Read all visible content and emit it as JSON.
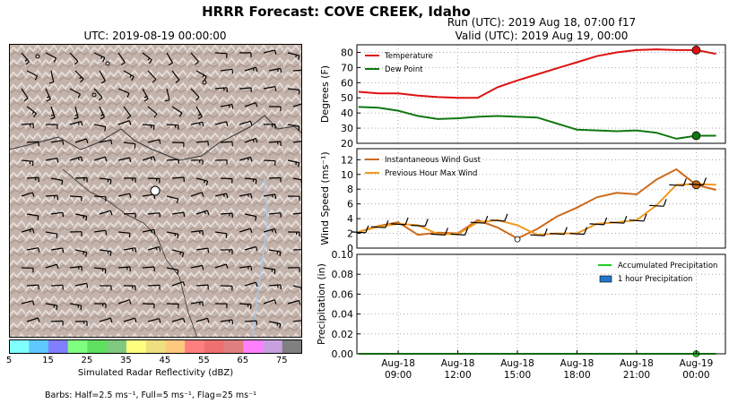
{
  "suptitle": "HRRR Forecast: COVE CREEK, Idaho",
  "map": {
    "title": "UTC: 2019-08-19 00:00:00",
    "colorbar": {
      "label": "Simulated Radar Reflectivity (dBZ)",
      "ticks": [
        "5",
        "15",
        "25",
        "35",
        "45",
        "55",
        "65",
        "75"
      ],
      "colors": [
        "#80ffff",
        "#5fc8ff",
        "#7f7fff",
        "#7fff7f",
        "#5fdf5f",
        "#7fc87f",
        "#ffff7f",
        "#efe07f",
        "#ffc87f",
        "#ff7f7f",
        "#ef7070",
        "#df7f7f",
        "#ff7fff",
        "#c8a0e0",
        "#808080"
      ]
    },
    "barb_note": "Barbs: Half=2.5 ms⁻¹, Full=5 ms⁻¹, Flag=25 ms⁻¹"
  },
  "run": {
    "line1": "Run (UTC): 2019 Aug 18, 07:00 f17",
    "line2": "Valid (UTC): 2019 Aug 19, 00:00"
  },
  "chart_data": [
    {
      "type": "line",
      "ylabel": "Degrees (F)",
      "ylim": [
        20,
        85
      ],
      "yticks": [
        "20",
        "30",
        "40",
        "50",
        "60",
        "70",
        "80"
      ],
      "grid": true,
      "legend": "top-left",
      "x_hours": [
        "Aug 18 07:00",
        "Aug 18 08:00",
        "Aug 18 09:00",
        "Aug 18 10:00",
        "Aug 18 11:00",
        "Aug 18 12:00",
        "Aug 18 13:00",
        "Aug 18 14:00",
        "Aug 18 15:00",
        "Aug 18 16:00",
        "Aug 18 17:00",
        "Aug 18 18:00",
        "Aug 18 19:00",
        "Aug 18 20:00",
        "Aug 18 21:00",
        "Aug 18 22:00",
        "Aug 18 23:00",
        "Aug 19 00:00",
        "Aug 19 01:00"
      ],
      "series": [
        {
          "name": "Temperature",
          "color": "#dd1111",
          "values": [
            54,
            53,
            53,
            51.5,
            50.5,
            50,
            50,
            57,
            61.5,
            65.5,
            69.5,
            73.5,
            77.5,
            80,
            81.5,
            82,
            81.5,
            81.5,
            79
          ]
        },
        {
          "name": "Dew Point",
          "color": "#117711",
          "values": [
            44,
            43.5,
            41.5,
            38,
            36,
            36.5,
            37.5,
            38,
            37.5,
            37,
            33,
            29,
            28.5,
            28,
            28.5,
            27,
            23,
            25,
            25
          ]
        }
      ],
      "markers": [
        {
          "series": "Temperature",
          "x": "Aug 19 00:00",
          "value": 81.5
        },
        {
          "series": "Dew Point",
          "x": "Aug 19 00:00",
          "value": 25
        }
      ]
    },
    {
      "type": "line",
      "ylabel": "Wind Speed (ms⁻¹)",
      "ylim": [
        0,
        13.5
      ],
      "yticks": [
        "0",
        "2",
        "4",
        "6",
        "8",
        "10",
        "12"
      ],
      "grid": true,
      "legend": "top-left",
      "x_hours": [
        "Aug 18 07:00",
        "Aug 18 08:00",
        "Aug 18 09:00",
        "Aug 18 10:00",
        "Aug 18 11:00",
        "Aug 18 12:00",
        "Aug 18 13:00",
        "Aug 18 14:00",
        "Aug 18 15:00",
        "Aug 18 16:00",
        "Aug 18 17:00",
        "Aug 18 18:00",
        "Aug 18 19:00",
        "Aug 18 20:00",
        "Aug 18 21:00",
        "Aug 18 22:00",
        "Aug 18 23:00",
        "Aug 19 00:00",
        "Aug 19 01:00"
      ],
      "series": [
        {
          "name": "Instantaneous Wind Gust",
          "color": "#cc6a1a",
          "values": [
            2.2,
            3.0,
            3.5,
            1.8,
            2.1,
            2.0,
            3.8,
            2.8,
            1.3,
            2.6,
            4.3,
            5.5,
            6.9,
            7.5,
            7.3,
            9.3,
            10.7,
            8.6,
            7.9
          ]
        },
        {
          "name": "Previous Hour Max Wind",
          "color": "#f09a20",
          "values": [
            2.2,
            2.9,
            3.3,
            3.1,
            1.9,
            1.9,
            3.5,
            3.8,
            3.1,
            1.8,
            2.0,
            2.0,
            3.3,
            3.5,
            3.8,
            5.8,
            8.6,
            8.7,
            8.6
          ]
        }
      ],
      "markers": [
        {
          "series": "Instantaneous Wind Gust",
          "x": "Aug 19 00:00",
          "value": 8.6
        },
        {
          "series": "Wind speed (open circle)",
          "x": "Aug 18 15:00",
          "value": 1.2
        }
      ]
    },
    {
      "type": "line",
      "ylabel": "Precipitation (in)",
      "ylim": [
        0,
        0.1
      ],
      "yticks": [
        "0.00",
        "0.02",
        "0.04",
        "0.06",
        "0.08",
        "0.10"
      ],
      "grid": true,
      "legend": "top-right",
      "x_hours": [
        "Aug 18 07:00",
        "Aug 18 08:00",
        "Aug 18 09:00",
        "Aug 18 10:00",
        "Aug 18 11:00",
        "Aug 18 12:00",
        "Aug 18 13:00",
        "Aug 18 14:00",
        "Aug 18 15:00",
        "Aug 18 16:00",
        "Aug 18 17:00",
        "Aug 18 18:00",
        "Aug 18 19:00",
        "Aug 18 20:00",
        "Aug 18 21:00",
        "Aug 18 22:00",
        "Aug 18 23:00",
        "Aug 19 00:00",
        "Aug 19 01:00"
      ],
      "series": [
        {
          "name": "Accumulated Precipitation",
          "color": "#22cc22",
          "values": [
            0,
            0,
            0,
            0,
            0,
            0,
            0,
            0,
            0,
            0,
            0,
            0,
            0,
            0,
            0,
            0,
            0,
            0,
            0
          ]
        },
        {
          "name": "1 hour Precipitation",
          "color": "#2277cc",
          "values": [
            0,
            0,
            0,
            0,
            0,
            0,
            0,
            0,
            0,
            0,
            0,
            0,
            0,
            0,
            0,
            0,
            0,
            0,
            0
          ]
        }
      ],
      "xticks": [
        {
          "x": "Aug 18 09:00",
          "top": "Aug-18",
          "bottom": "09:00"
        },
        {
          "x": "Aug 18 12:00",
          "top": "Aug-18",
          "bottom": "12:00"
        },
        {
          "x": "Aug 18 15:00",
          "top": "Aug-18",
          "bottom": "15:00"
        },
        {
          "x": "Aug 18 18:00",
          "top": "Aug-18",
          "bottom": "18:00"
        },
        {
          "x": "Aug 18 21:00",
          "top": "Aug-18",
          "bottom": "21:00"
        },
        {
          "x": "Aug 19 00:00",
          "top": "Aug-19",
          "bottom": "00:00"
        }
      ]
    }
  ]
}
